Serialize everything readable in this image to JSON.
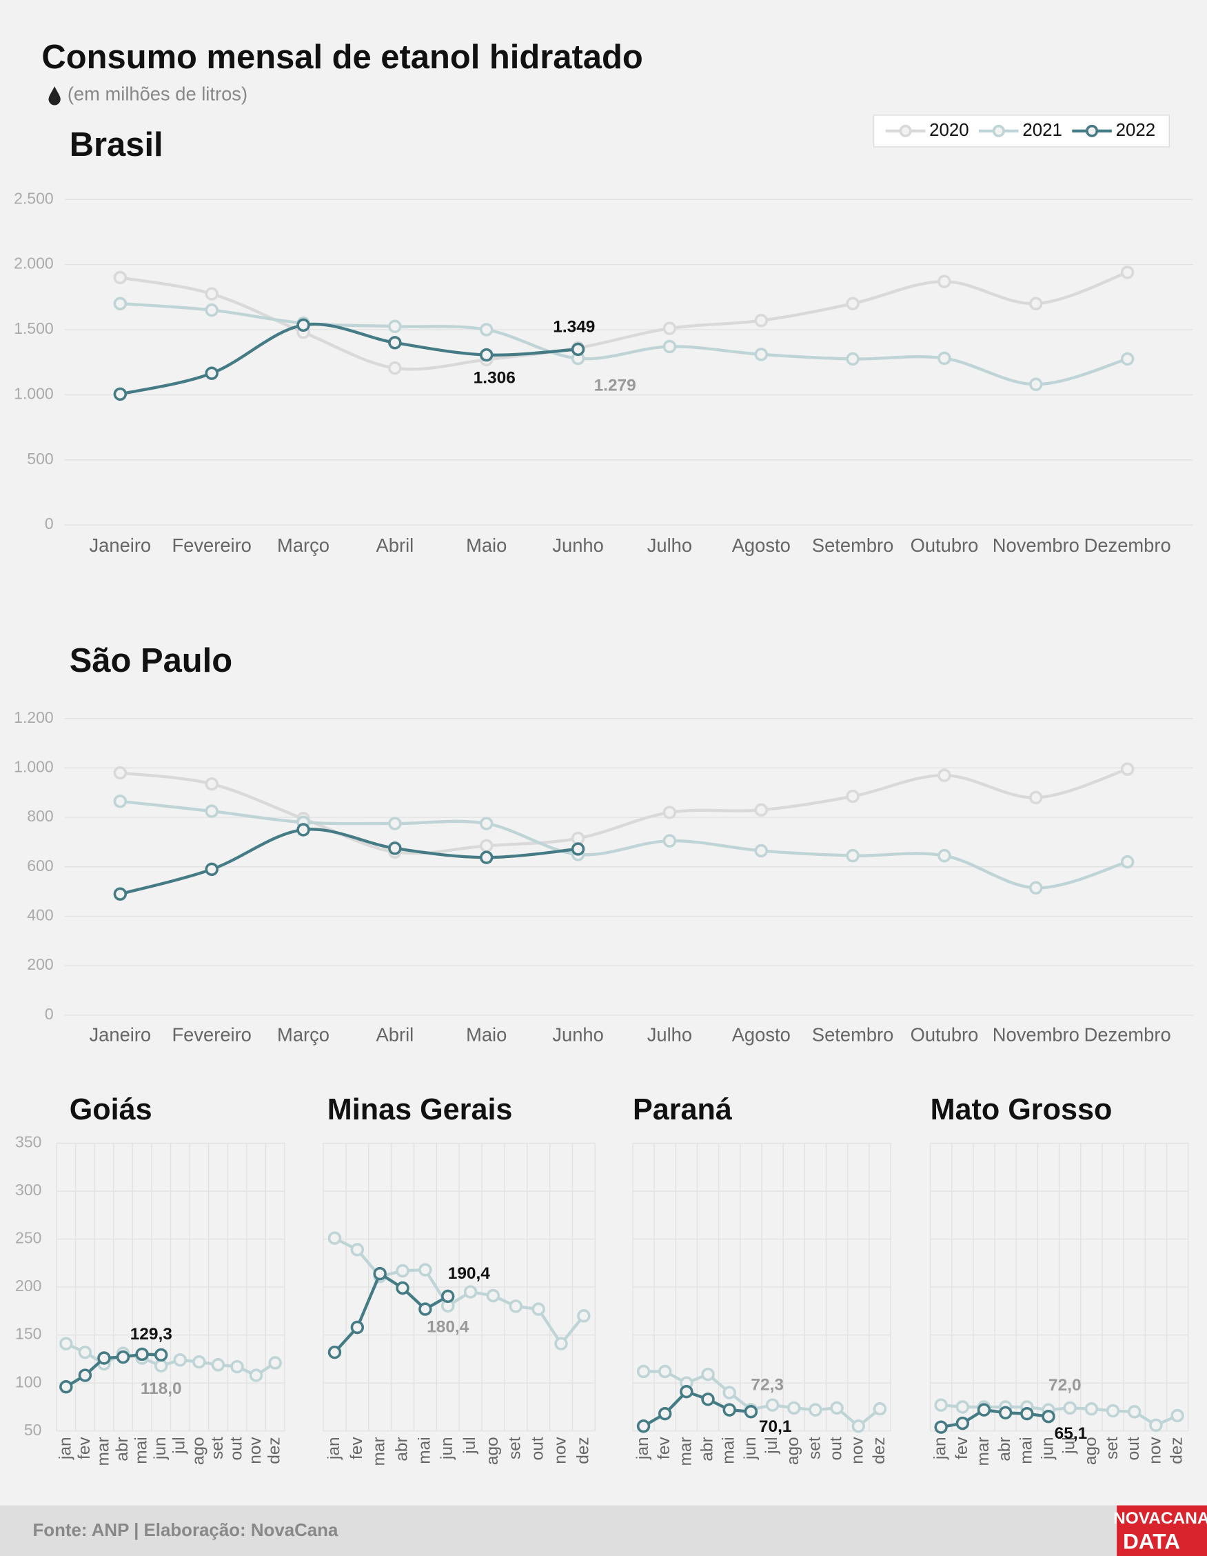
{
  "title": "Consumo mensal de etanol hidratado",
  "subtitle": "(em milhões de litros)",
  "source": "Fonte: ANP | Elaboração: NovaCana",
  "logo": [
    "NOVACANA",
    "DATA"
  ],
  "chart_data": [
    {
      "type": "line",
      "title": "Brasil",
      "smooth": true,
      "grid": true,
      "legend": "top-right",
      "categories": [
        "Janeiro",
        "Fevereiro",
        "Março",
        "Abril",
        "Maio",
        "Junho",
        "Julho",
        "Agosto",
        "Setembro",
        "Outubro",
        "Novembro",
        "Dezembro"
      ],
      "ylim": [
        0,
        2500
      ],
      "yticks": [
        0,
        500,
        {
          "value": 1000,
          "label": "1.000"
        },
        {
          "value": 1500,
          "label": "1.500"
        },
        {
          "value": 2000,
          "label": "2.000"
        },
        {
          "value": 2500,
          "label": "2.500"
        }
      ],
      "series": [
        {
          "name": "2020",
          "color": "#d9d9d9",
          "values": [
            1900,
            1775,
            1480,
            1205,
            1270,
            1360,
            1510,
            1570,
            1700,
            1870,
            1700,
            1940
          ]
        },
        {
          "name": "2021",
          "color": "#bfd4d6",
          "values": [
            1700,
            1650,
            1550,
            1525,
            1500,
            1279,
            1370,
            1310,
            1275,
            1280,
            1080,
            1275
          ],
          "value_labels": [
            null,
            null,
            null,
            null,
            null,
            "1.279",
            null,
            null,
            null,
            null,
            null,
            null
          ]
        },
        {
          "name": "2022",
          "color": "#457b85",
          "values": [
            1005,
            1165,
            1535,
            1400,
            1306,
            1349,
            null,
            null,
            null,
            null,
            null,
            null
          ],
          "value_labels": [
            null,
            null,
            null,
            null,
            "1.306",
            "1.349",
            null,
            null,
            null,
            null,
            null,
            null
          ]
        }
      ]
    },
    {
      "type": "line",
      "title": "São Paulo",
      "smooth": true,
      "grid": true,
      "categories": [
        "Janeiro",
        "Fevereiro",
        "Março",
        "Abril",
        "Maio",
        "Junho",
        "Julho",
        "Agosto",
        "Setembro",
        "Outubro",
        "Novembro",
        "Dezembro"
      ],
      "ylim": [
        0,
        1200
      ],
      "yticks": [
        0,
        200,
        400,
        600,
        800,
        {
          "value": 1000,
          "label": "1.000"
        },
        {
          "value": 1200,
          "label": "1.200"
        }
      ],
      "series": [
        {
          "color": "#d9d9d9",
          "values": [
            980,
            935,
            795,
            660,
            685,
            715,
            820,
            830,
            885,
            970,
            880,
            995
          ]
        },
        {
          "color": "#bfd4d6",
          "values": [
            865,
            825,
            780,
            775,
            775,
            650,
            705,
            665,
            645,
            645,
            515,
            620
          ]
        },
        {
          "color": "#457b85",
          "values": [
            490,
            590,
            750,
            675,
            638,
            672,
            null,
            null,
            null,
            null,
            null,
            null
          ]
        }
      ]
    },
    {
      "type": "line",
      "title": "Goiás",
      "smooth": false,
      "grid": true,
      "categories": [
        "jan",
        "fev",
        "mar",
        "abr",
        "mai",
        "jun",
        "jul",
        "ago",
        "set",
        "out",
        "nov",
        "dez"
      ],
      "ylim": [
        50,
        350
      ],
      "yticks": [
        50,
        100,
        150,
        200,
        250,
        300,
        350
      ],
      "series": [
        {
          "color": "#bfd4d6",
          "values": [
            141,
            132,
            120,
            131,
            126,
            118,
            124,
            122,
            119,
            117,
            108,
            121
          ],
          "value_labels": [
            null,
            null,
            null,
            null,
            null,
            "118,0",
            null,
            null,
            null,
            null,
            null,
            null
          ]
        },
        {
          "color": "#457b85",
          "values": [
            96,
            108,
            126,
            127,
            130,
            129.3,
            null,
            null,
            null,
            null,
            null,
            null
          ],
          "value_labels": [
            null,
            null,
            null,
            null,
            null,
            "129,3",
            null,
            null,
            null,
            null,
            null,
            null
          ]
        }
      ]
    },
    {
      "type": "line",
      "title": "Minas Gerais",
      "smooth": false,
      "grid": true,
      "categories": [
        "jan",
        "fev",
        "mar",
        "abr",
        "mai",
        "jun",
        "jul",
        "ago",
        "set",
        "out",
        "nov",
        "dez"
      ],
      "ylim": [
        50,
        350
      ],
      "yticks": [
        50,
        100,
        150,
        200,
        250,
        300,
        350
      ],
      "series": [
        {
          "color": "#bfd4d6",
          "values": [
            251,
            239,
            211,
            217,
            218,
            180.4,
            195,
            191,
            180,
            177,
            141,
            170
          ],
          "value_labels": [
            null,
            null,
            null,
            null,
            null,
            "180,4",
            null,
            null,
            null,
            null,
            null,
            null
          ]
        },
        {
          "color": "#457b85",
          "values": [
            132,
            158,
            214,
            199,
            177,
            190.4,
            null,
            null,
            null,
            null,
            null,
            null
          ],
          "value_labels": [
            null,
            null,
            null,
            null,
            null,
            "190,4",
            null,
            null,
            null,
            null,
            null,
            null
          ]
        }
      ]
    },
    {
      "type": "line",
      "title": "Paraná",
      "smooth": false,
      "grid": true,
      "categories": [
        "jan",
        "fev",
        "mar",
        "abr",
        "mai",
        "jun",
        "jul",
        "ago",
        "set",
        "out",
        "nov",
        "dez"
      ],
      "ylim": [
        50,
        350
      ],
      "yticks": [
        50,
        100,
        150,
        200,
        250,
        300,
        350
      ],
      "series": [
        {
          "color": "#bfd4d6",
          "values": [
            112,
            112,
            100,
            109,
            90,
            72.3,
            77,
            74,
            72,
            74,
            55,
            73
          ],
          "value_labels": [
            null,
            null,
            null,
            null,
            null,
            "72,3",
            null,
            null,
            null,
            null,
            null,
            null
          ]
        },
        {
          "color": "#457b85",
          "values": [
            55,
            68,
            91,
            83,
            72,
            70.1,
            null,
            null,
            null,
            null,
            null,
            null
          ],
          "value_labels": [
            null,
            null,
            null,
            null,
            null,
            "70,1",
            null,
            null,
            null,
            null,
            null,
            null
          ]
        }
      ]
    },
    {
      "type": "line",
      "title": "Mato Grosso",
      "smooth": false,
      "grid": true,
      "categories": [
        "jan",
        "fev",
        "mar",
        "abr",
        "mai",
        "jun",
        "jul",
        "ago",
        "set",
        "out",
        "nov",
        "dez"
      ],
      "ylim": [
        50,
        350
      ],
      "yticks": [
        50,
        100,
        150,
        200,
        250,
        300,
        350
      ],
      "series": [
        {
          "color": "#bfd4d6",
          "values": [
            77,
            75,
            75,
            75,
            75,
            72.0,
            74,
            73,
            71,
            70,
            56,
            66
          ],
          "value_labels": [
            null,
            null,
            null,
            null,
            null,
            "72,0",
            null,
            null,
            null,
            null,
            null,
            null
          ]
        },
        {
          "color": "#457b85",
          "values": [
            54,
            58,
            72,
            69,
            68,
            65.1,
            null,
            null,
            null,
            null,
            null,
            null
          ],
          "value_labels": [
            null,
            null,
            null,
            null,
            null,
            "65,1",
            null,
            null,
            null,
            null,
            null,
            null
          ]
        }
      ]
    }
  ]
}
